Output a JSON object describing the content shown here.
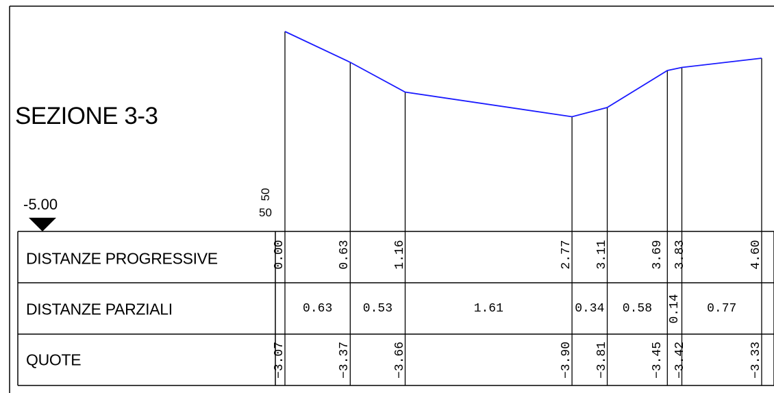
{
  "title": "SEZIONE 3-3",
  "datum": "-5.00",
  "scale": {
    "horizontal": "50",
    "vertical": "50"
  },
  "rows": {
    "distanze_progressive": "DISTANZE PROGRESSIVE",
    "distanze_parziali": "DISTANZE PARZIALI",
    "quote": "QUOTE"
  },
  "colors": {
    "profile": "#1a1aff",
    "lines": "#000000"
  },
  "stations": [
    {
      "progressive": "0.00",
      "quota": "−3.07",
      "d": 0.0,
      "z": -3.07
    },
    {
      "progressive": "0.63",
      "quota": "−3.37",
      "d": 0.63,
      "z": -3.37
    },
    {
      "progressive": "1.16",
      "quota": "−3.66",
      "d": 1.16,
      "z": -3.66
    },
    {
      "progressive": "2.77",
      "quota": "−3.90",
      "d": 2.77,
      "z": -3.9
    },
    {
      "progressive": "3.11",
      "quota": "−3.81",
      "d": 3.11,
      "z": -3.81
    },
    {
      "progressive": "3.69",
      "quota": "−3.45",
      "d": 3.69,
      "z": -3.45
    },
    {
      "progressive": "3.83",
      "quota": "−3.42",
      "d": 3.83,
      "z": -3.42
    },
    {
      "progressive": "4.60",
      "quota": "−3.33",
      "d": 4.6,
      "z": -3.33
    }
  ],
  "partials": [
    "0.63",
    "0.53",
    "1.61",
    "0.34",
    "0.58",
    "0.14",
    "0.77"
  ]
}
